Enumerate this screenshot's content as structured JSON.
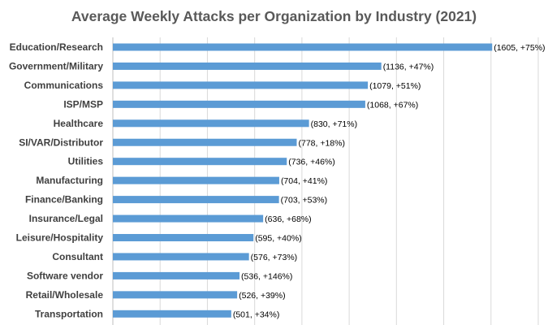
{
  "chart_data": {
    "type": "bar",
    "orientation": "horizontal",
    "title": "Average Weekly Attacks per Organization by Industry (2021)",
    "categories": [
      "Education/Research",
      "Government/Military",
      "Communications",
      "ISP/MSP",
      "Healthcare",
      "SI/VAR/Distributor",
      "Utilities",
      "Manufacturing",
      "Finance/Banking",
      "Insurance/Legal",
      "Leisure/Hospitality",
      "Consultant",
      "Software vendor",
      "Retail/Wholesale",
      "Transportation"
    ],
    "values": [
      1605,
      1136,
      1079,
      1068,
      830,
      778,
      736,
      704,
      703,
      636,
      595,
      576,
      536,
      526,
      501
    ],
    "data_labels": [
      "(1605, +75%)",
      "(1136, +47%)",
      "(1079, +51%)",
      "(1068, +67%)",
      "(830, +71%)",
      "(778, +18%)",
      "(736, +46%)",
      "(704, +41%)",
      "(703, +53%)",
      "(636, +68%)",
      "(595, +40%)",
      "(576, +73%)",
      "(536, +146%)",
      "(526, +39%)",
      "(501, +34%)"
    ],
    "xlim": [
      0,
      1800
    ],
    "grid": "vertical",
    "xlabel": "",
    "ylabel": "",
    "bar_color": "#5b9bd5",
    "grid_color": "#d9d9d9"
  }
}
